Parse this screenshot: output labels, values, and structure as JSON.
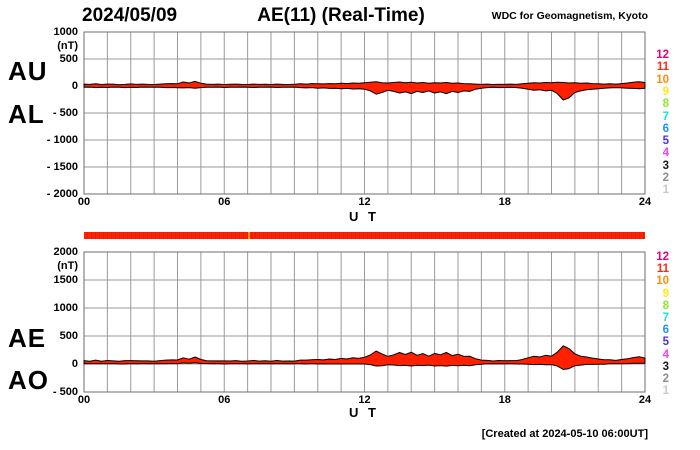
{
  "header": {
    "date": "2024/05/09",
    "title": "AE(11) (Real-Time)",
    "org": "WDC for Geomagnetism, Kyoto"
  },
  "footer": {
    "created": "[Created at 2024-05-10 06:00UT]"
  },
  "station_counts": {
    "values": [
      "12",
      "11",
      "10",
      "9",
      "8",
      "7",
      "6",
      "5",
      "4",
      "3",
      "2",
      "1"
    ],
    "colors": [
      "#E6007E",
      "#FF2A14",
      "#FF8C0A",
      "#FFE913",
      "#8CE62E",
      "#17E0D8",
      "#1E90FF",
      "#4433EE",
      "#EE42EE",
      "#1A1A1A",
      "#8C8C8C",
      "#C8C8C8"
    ]
  },
  "availability_bar": {
    "color": "#FF2000",
    "marker_color": "#FF9900",
    "marker_time_ut": 7
  },
  "chart_data": [
    {
      "type": "area",
      "panel": "AU-AL",
      "left_labels": [
        "AU",
        "AL"
      ],
      "ylabel": "(nT)",
      "xlabel": "U T",
      "ylim": [
        -2000,
        1000
      ],
      "ytick_values": [
        1000,
        500,
        0,
        -500,
        -1000,
        -1500,
        -2000
      ],
      "ytick_labels": [
        "1000",
        "500",
        "0",
        "- 500",
        "- 1000",
        "- 1500",
        "- 2000"
      ],
      "xtick_hours": [
        0,
        6,
        12,
        18,
        24
      ],
      "xtick_labels": [
        "00",
        "06",
        "12",
        "18",
        "24"
      ],
      "x_range_hours": [
        0,
        24
      ],
      "x_step_hours": 0.25,
      "grid": true,
      "fill_color": "#FF2000",
      "stroke_color": "#000000",
      "series": [
        {
          "name": "AU",
          "values": [
            35,
            30,
            40,
            28,
            35,
            35,
            25,
            30,
            38,
            30,
            35,
            30,
            28,
            35,
            40,
            45,
            40,
            75,
            55,
            85,
            50,
            35,
            30,
            35,
            28,
            32,
            35,
            30,
            28,
            35,
            30,
            32,
            28,
            35,
            30,
            28,
            32,
            40,
            35,
            45,
            40,
            38,
            45,
            40,
            50,
            45,
            55,
            50,
            60,
            70,
            80,
            60,
            55,
            65,
            75,
            60,
            70,
            55,
            65,
            50,
            60,
            55,
            65,
            50,
            55,
            45,
            40,
            35,
            30,
            35,
            28,
            32,
            30,
            35,
            30,
            40,
            50,
            60,
            55,
            65,
            60,
            70,
            65,
            55,
            60,
            50,
            55,
            45,
            40,
            35,
            40,
            35,
            45,
            55,
            70,
            80,
            65
          ]
        },
        {
          "name": "AL",
          "values": [
            -25,
            -20,
            -30,
            -22,
            -28,
            -20,
            -25,
            -30,
            -22,
            -28,
            -20,
            -25,
            -22,
            -25,
            -30,
            -28,
            -32,
            -35,
            -30,
            -40,
            -30,
            -22,
            -25,
            -20,
            -28,
            -22,
            -25,
            -20,
            -25,
            -28,
            -22,
            -25,
            -20,
            -28,
            -22,
            -25,
            -20,
            -30,
            -35,
            -30,
            -40,
            -35,
            -45,
            -40,
            -50,
            -45,
            -55,
            -50,
            -60,
            -90,
            -150,
            -120,
            -80,
            -100,
            -130,
            -110,
            -140,
            -100,
            -120,
            -90,
            -130,
            -110,
            -140,
            -100,
            -120,
            -90,
            -100,
            -60,
            -40,
            -30,
            -25,
            -30,
            -28,
            -25,
            -30,
            -40,
            -60,
            -80,
            -70,
            -90,
            -80,
            -140,
            -260,
            -220,
            -120,
            -90,
            -70,
            -60,
            -50,
            -40,
            -35,
            -30,
            -35,
            -40,
            -45,
            -50,
            -40
          ]
        }
      ]
    },
    {
      "type": "area",
      "panel": "AE-AO",
      "left_labels": [
        "AE",
        "AO"
      ],
      "ylabel": "(nT)",
      "xlabel": "U T",
      "ylim": [
        -500,
        2000
      ],
      "ytick_values": [
        2000,
        1500,
        1000,
        500,
        0,
        -500
      ],
      "ytick_labels": [
        "2000",
        "1500",
        "1000",
        "500",
        "0",
        "- 500"
      ],
      "xtick_hours": [
        0,
        6,
        12,
        18,
        24
      ],
      "xtick_labels": [
        "00",
        "06",
        "12",
        "18",
        "24"
      ],
      "x_range_hours": [
        0,
        24
      ],
      "x_step_hours": 0.25,
      "grid": true,
      "fill_color": "#FF2000",
      "stroke_color": "#000000",
      "series": [
        {
          "name": "AE",
          "values": [
            60,
            50,
            70,
            50,
            63,
            55,
            50,
            60,
            60,
            58,
            55,
            55,
            50,
            60,
            70,
            73,
            72,
            110,
            85,
            125,
            80,
            57,
            55,
            55,
            56,
            54,
            60,
            50,
            53,
            63,
            52,
            57,
            48,
            63,
            52,
            53,
            52,
            70,
            70,
            75,
            80,
            73,
            90,
            80,
            100,
            90,
            110,
            100,
            120,
            160,
            230,
            180,
            135,
            165,
            205,
            170,
            210,
            155,
            185,
            140,
            190,
            165,
            205,
            150,
            175,
            135,
            140,
            95,
            70,
            65,
            53,
            62,
            58,
            60,
            60,
            80,
            110,
            140,
            125,
            155,
            140,
            210,
            325,
            275,
            180,
            140,
            125,
            105,
            90,
            75,
            75,
            65,
            80,
            95,
            115,
            130,
            105
          ]
        },
        {
          "name": "AO",
          "values": [
            5,
            5,
            5,
            3,
            4,
            8,
            0,
            0,
            8,
            1,
            8,
            3,
            3,
            5,
            5,
            9,
            4,
            20,
            13,
            23,
            10,
            7,
            3,
            8,
            0,
            5,
            5,
            5,
            2,
            4,
            4,
            4,
            4,
            4,
            4,
            2,
            6,
            5,
            0,
            8,
            0,
            2,
            0,
            0,
            0,
            0,
            0,
            0,
            0,
            -10,
            -35,
            -30,
            -13,
            -18,
            -28,
            -25,
            -35,
            -23,
            -28,
            -20,
            -35,
            -28,
            -38,
            -25,
            -33,
            -23,
            -30,
            -13,
            -5,
            3,
            2,
            1,
            1,
            5,
            0,
            0,
            -5,
            -10,
            -8,
            -13,
            -10,
            -35,
            -98,
            -83,
            -30,
            -20,
            -8,
            -8,
            -5,
            -3,
            3,
            3,
            5,
            8,
            13,
            15,
            13
          ]
        }
      ]
    }
  ]
}
